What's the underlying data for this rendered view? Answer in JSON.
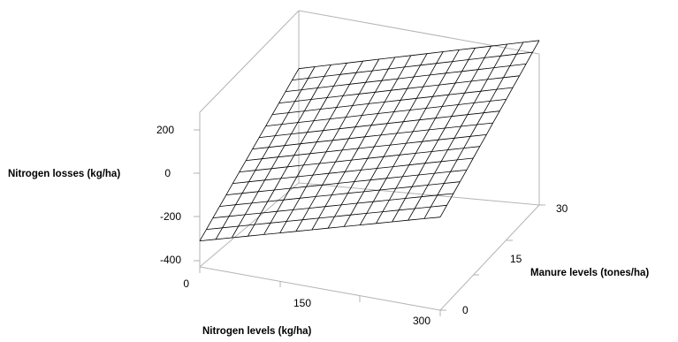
{
  "chart_data": {
    "type": "surface",
    "title": "",
    "zlabel": "Nitrogen losses (kg/ha)",
    "xlabel": "Nitrogen levels (kg/ha)",
    "ylabel": "Manure levels (tones/ha)",
    "x_tick_labels": [
      "0",
      "150",
      "300"
    ],
    "y_tick_labels": [
      "0",
      "15",
      "30"
    ],
    "z_tick_labels": [
      "200",
      "0",
      "-200",
      "-400"
    ],
    "x_range": [
      0,
      300
    ],
    "y_range": [
      0,
      30
    ],
    "zlim": [
      -400,
      300
    ],
    "grid": false,
    "legend": "none",
    "x": [
      0,
      20,
      40,
      60,
      80,
      100,
      120,
      140,
      160,
      180,
      200,
      220,
      240,
      260,
      280,
      300
    ],
    "y": [
      0,
      2,
      4,
      6,
      8,
      10,
      12,
      14,
      16,
      18,
      20,
      22,
      24,
      26,
      28,
      30
    ],
    "corner_values": {
      "x0_y0": -280,
      "x300_y0": 30,
      "x0_y30": 30,
      "x300_y30": 360
    }
  }
}
